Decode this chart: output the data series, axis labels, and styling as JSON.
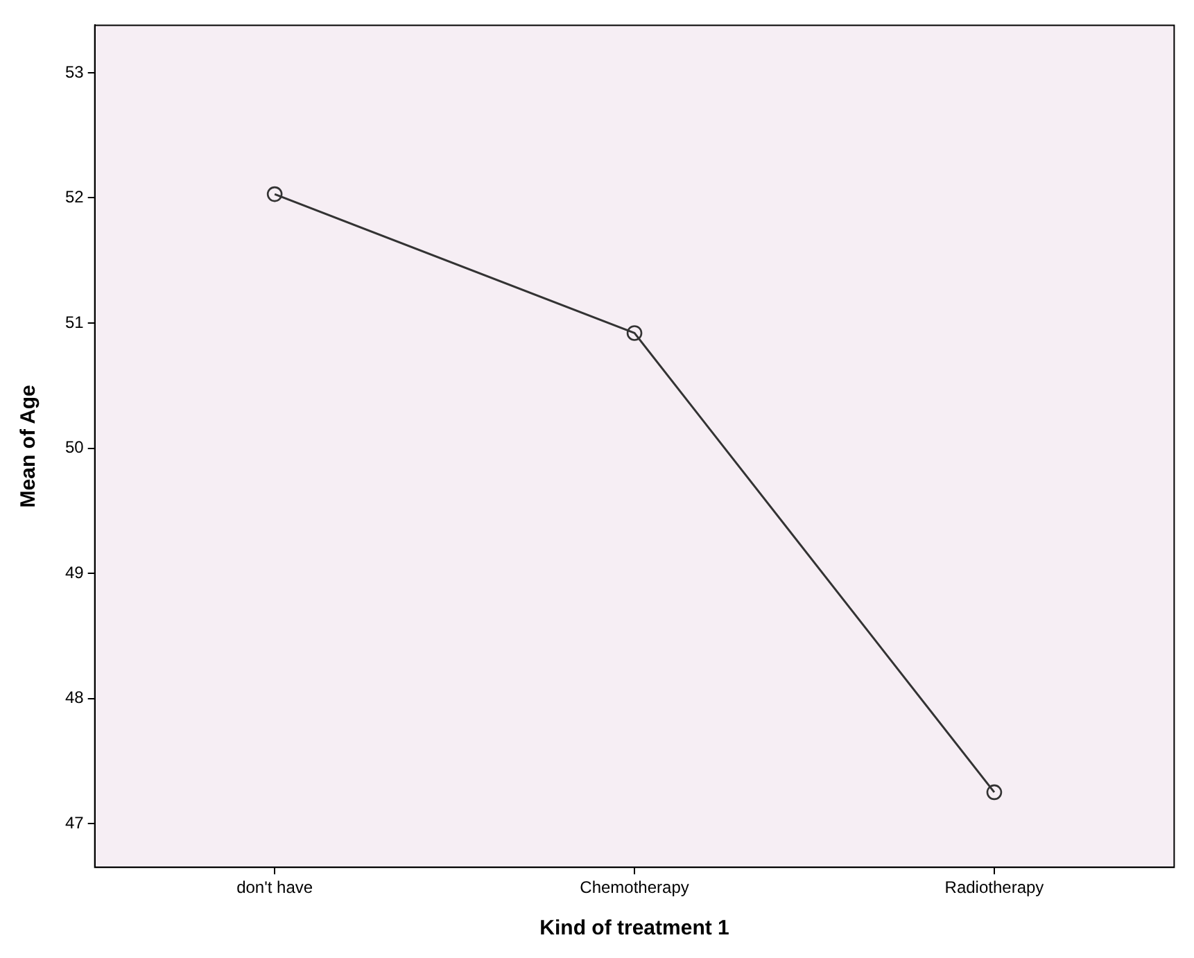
{
  "chart_data": {
    "type": "line",
    "xlabel": "Kind of treatment 1",
    "ylabel": "Mean of Age",
    "categories": [
      "don't have",
      "Chemotherapy",
      "Radiotherapy"
    ],
    "series": [
      {
        "color": "#333333",
        "values": [
          52.03,
          50.92,
          47.25
        ]
      }
    ],
    "ylim": [
      46.65,
      53.38
    ],
    "yticks": [
      47,
      48,
      49,
      50,
      51,
      52,
      53
    ],
    "grid": false,
    "legend": false,
    "marker": "circle",
    "line_style": "solid"
  }
}
